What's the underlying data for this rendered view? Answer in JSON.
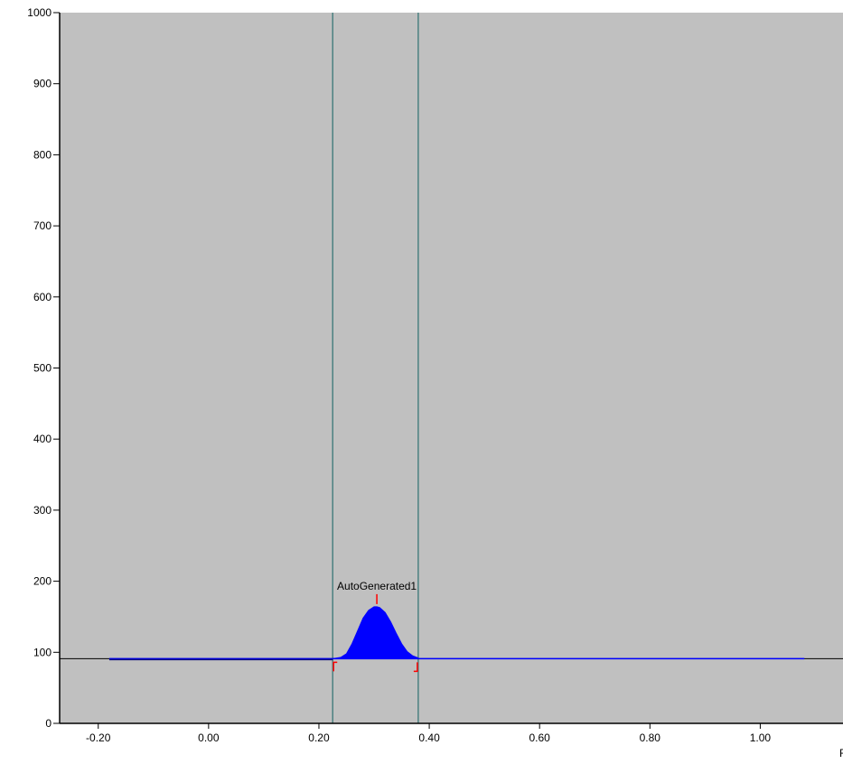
{
  "chart_data": {
    "type": "area",
    "xlim": [
      -0.27,
      1.15
    ],
    "ylim": [
      0,
      1000
    ],
    "x_ticks": [
      -0.2,
      0.0,
      0.2,
      0.4,
      0.6,
      0.8,
      1.0
    ],
    "x_tick_labels": [
      "-0.20",
      "0.00",
      "0.20",
      "0.40",
      "0.60",
      "0.80",
      "1.00"
    ],
    "y_ticks": [
      0,
      100,
      200,
      300,
      400,
      500,
      600,
      700,
      800,
      900,
      1000
    ],
    "y_tick_labels": [
      "0",
      "100",
      "200",
      "300",
      "400",
      "500",
      "600",
      "700",
      "800",
      "900",
      "1000"
    ],
    "baseline": 91,
    "baseline_range": [
      -0.27,
      1.15
    ],
    "trace_range": [
      -0.18,
      1.08
    ],
    "peak": {
      "label": "AutoGenerated1",
      "apex_x": 0.305,
      "apex_y": 164,
      "start_x": 0.225,
      "end_x": 0.38,
      "profile_x": [
        0.225,
        0.24,
        0.25,
        0.26,
        0.27,
        0.28,
        0.29,
        0.3,
        0.305,
        0.31,
        0.32,
        0.33,
        0.34,
        0.35,
        0.36,
        0.37,
        0.38
      ],
      "profile_y": [
        91,
        93,
        98,
        112,
        130,
        148,
        159,
        164,
        164,
        163,
        156,
        143,
        127,
        112,
        101,
        95,
        92
      ]
    },
    "window_lines_x": [
      0.225,
      0.38
    ],
    "x_unit_partial": "F",
    "colors": {
      "plot_background": "#c0c0c0",
      "trace": "#0000ff",
      "peak_fill": "#0000ff",
      "baseline": "#000000",
      "window_line": "#4b8080",
      "peak_marker": "#ff0000"
    }
  }
}
